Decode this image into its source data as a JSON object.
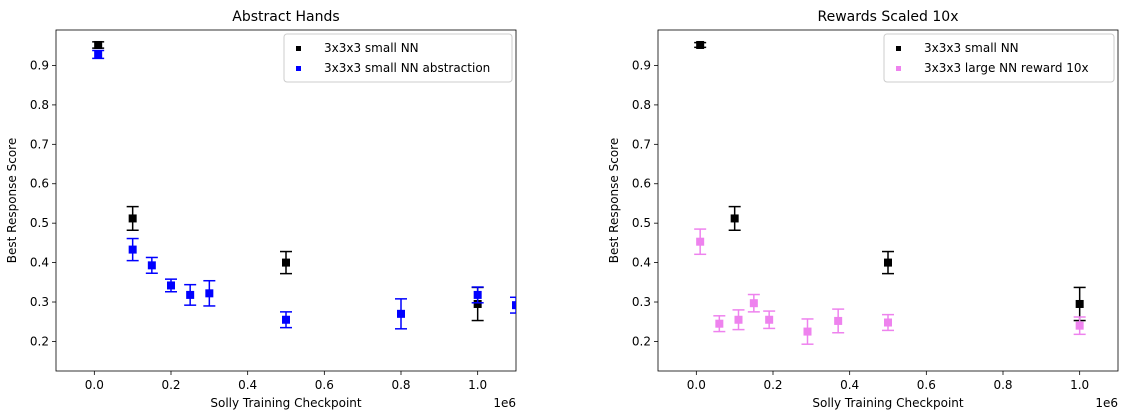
{
  "chart_data": [
    {
      "type": "scatter",
      "title": "Abstract Hands",
      "xlabel": "Solly Training Checkpoint",
      "ylabel": "Best Response Score",
      "x_multiplier_label": "1e6",
      "xlim": [
        -0.1,
        1.1
      ],
      "ylim": [
        0.125,
        0.99
      ],
      "xticks": [
        "0.0",
        "0.2",
        "0.4",
        "0.6",
        "0.8",
        "1.0"
      ],
      "yticks": [
        "0.2",
        "0.3",
        "0.4",
        "0.5",
        "0.6",
        "0.7",
        "0.8",
        "0.9"
      ],
      "grid": false,
      "legend_position": "top-right",
      "series": [
        {
          "name": "3x3x3 small NN",
          "color": "#000000",
          "points": [
            {
              "x": 0.01,
              "y": 0.952,
              "yerr": 0.008
            },
            {
              "x": 0.1,
              "y": 0.512,
              "yerr": 0.03
            },
            {
              "x": 0.5,
              "y": 0.4,
              "yerr": 0.028
            },
            {
              "x": 1.0,
              "y": 0.295,
              "yerr": 0.042
            }
          ]
        },
        {
          "name": "3x3x3 small NN abstraction",
          "color": "#0000ff",
          "points": [
            {
              "x": 0.01,
              "y": 0.928,
              "yerr": 0.01
            },
            {
              "x": 0.1,
              "y": 0.433,
              "yerr": 0.028
            },
            {
              "x": 0.15,
              "y": 0.393,
              "yerr": 0.02
            },
            {
              "x": 0.2,
              "y": 0.342,
              "yerr": 0.016
            },
            {
              "x": 0.25,
              "y": 0.318,
              "yerr": 0.026
            },
            {
              "x": 0.3,
              "y": 0.322,
              "yerr": 0.032
            },
            {
              "x": 0.5,
              "y": 0.255,
              "yerr": 0.02
            },
            {
              "x": 0.8,
              "y": 0.27,
              "yerr": 0.038
            },
            {
              "x": 1.0,
              "y": 0.318,
              "yerr": 0.02
            },
            {
              "x": 1.1,
              "y": 0.292,
              "yerr": 0.02
            }
          ]
        }
      ]
    },
    {
      "type": "scatter",
      "title": "Rewards Scaled 10x",
      "xlabel": "Solly Training Checkpoint",
      "ylabel": "Best Response Score",
      "x_multiplier_label": "1e6",
      "xlim": [
        -0.1,
        1.1
      ],
      "ylim": [
        0.125,
        0.99
      ],
      "xticks": [
        "0.0",
        "0.2",
        "0.4",
        "0.6",
        "0.8",
        "1.0"
      ],
      "yticks": [
        "0.2",
        "0.3",
        "0.4",
        "0.5",
        "0.6",
        "0.7",
        "0.8",
        "0.9"
      ],
      "grid": false,
      "legend_position": "top-right",
      "series": [
        {
          "name": "3x3x3 small NN",
          "color": "#000000",
          "points": [
            {
              "x": 0.01,
              "y": 0.952,
              "yerr": 0.006
            },
            {
              "x": 0.1,
              "y": 0.512,
              "yerr": 0.03
            },
            {
              "x": 0.5,
              "y": 0.4,
              "yerr": 0.028
            },
            {
              "x": 1.0,
              "y": 0.295,
              "yerr": 0.042
            }
          ]
        },
        {
          "name": "3x3x3 large NN reward 10x",
          "color": "#ee82ee",
          "points": [
            {
              "x": 0.01,
              "y": 0.453,
              "yerr": 0.032
            },
            {
              "x": 0.06,
              "y": 0.245,
              "yerr": 0.02
            },
            {
              "x": 0.11,
              "y": 0.255,
              "yerr": 0.025
            },
            {
              "x": 0.15,
              "y": 0.297,
              "yerr": 0.022
            },
            {
              "x": 0.19,
              "y": 0.255,
              "yerr": 0.022
            },
            {
              "x": 0.29,
              "y": 0.225,
              "yerr": 0.032
            },
            {
              "x": 0.37,
              "y": 0.252,
              "yerr": 0.03
            },
            {
              "x": 0.5,
              "y": 0.248,
              "yerr": 0.02
            },
            {
              "x": 1.0,
              "y": 0.24,
              "yerr": 0.022
            }
          ]
        }
      ]
    }
  ]
}
